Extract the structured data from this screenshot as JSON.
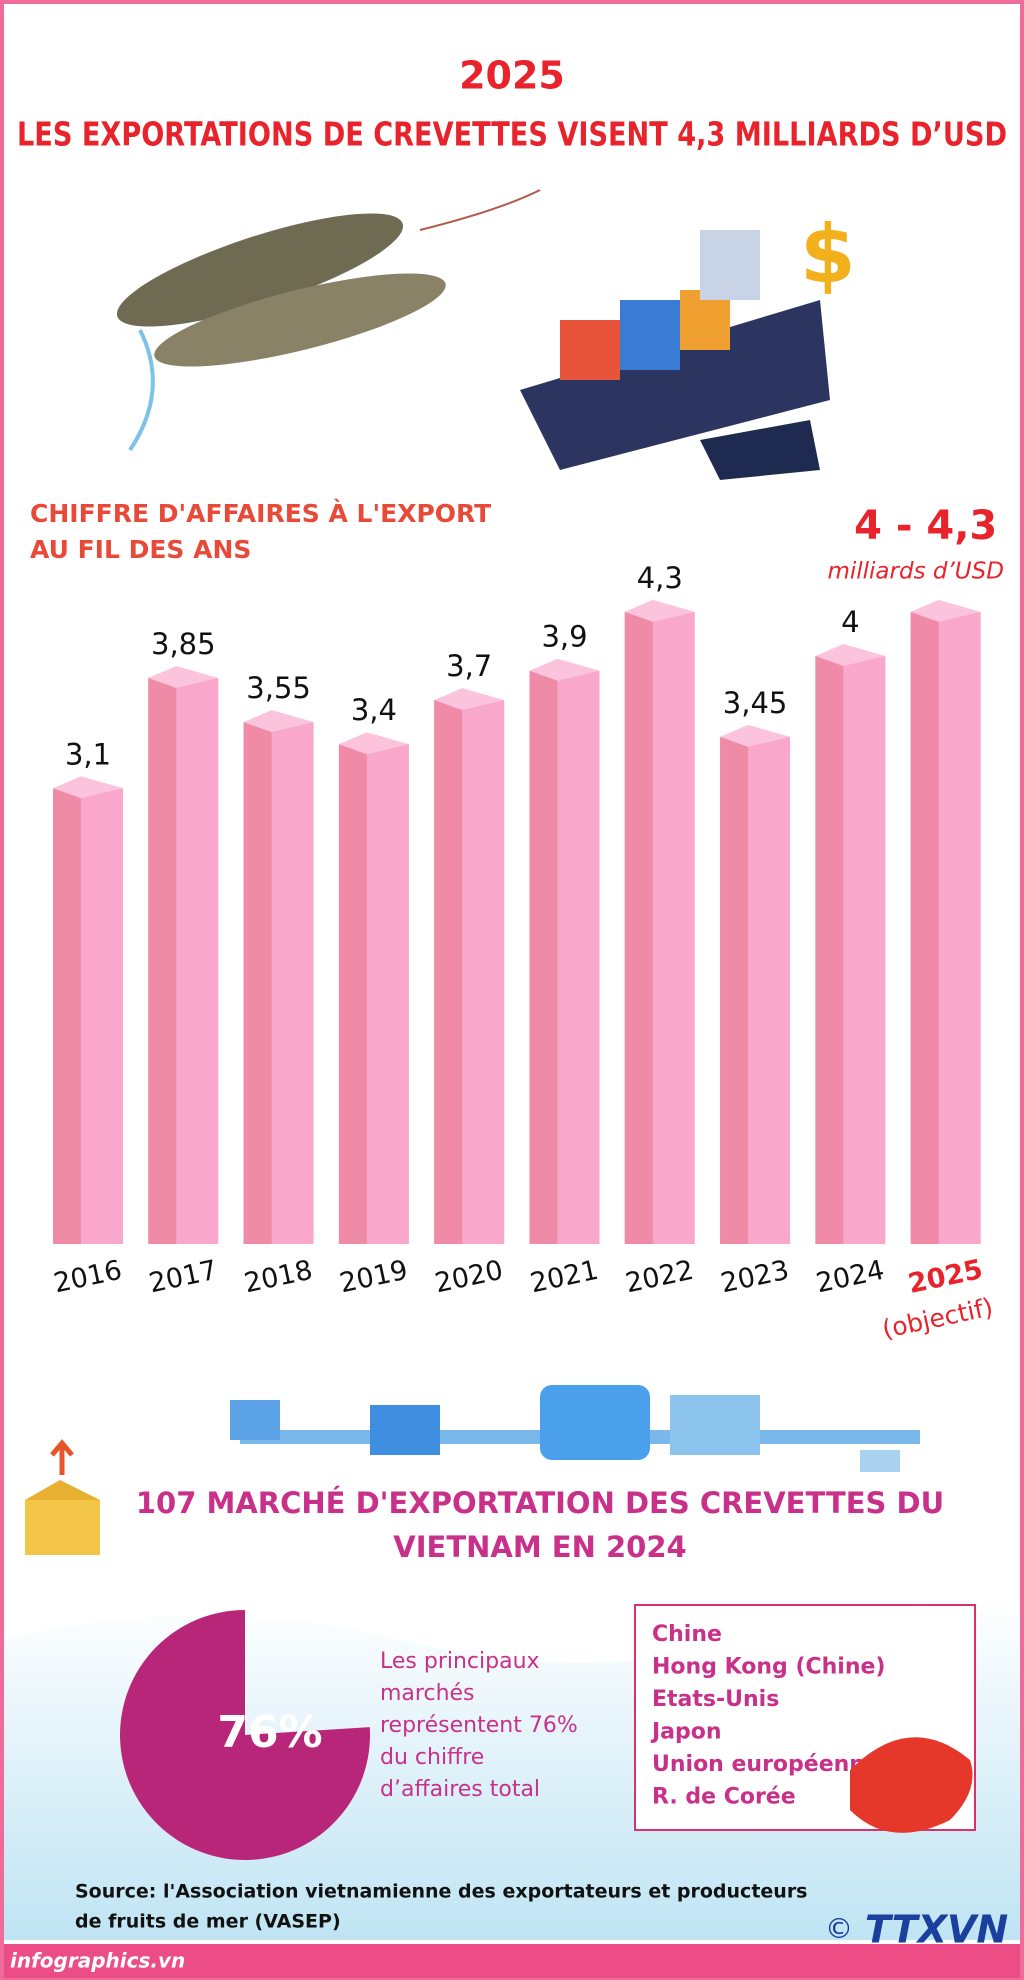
{
  "header": {
    "year": "2025",
    "title": "LES EXPORTATIONS DE CREVETTES VISENT 4,3 MILLIARDS D’USD"
  },
  "chart_data": {
    "type": "bar",
    "title": [
      "CHIFFRE D'AFFAIRES À L'EXPORT",
      "AU FIL DES ANS"
    ],
    "categories": [
      "2016",
      "2017",
      "2018",
      "2019",
      "2020",
      "2021",
      "2022",
      "2023",
      "2024",
      "2025"
    ],
    "values": [
      3.1,
      3.85,
      3.55,
      3.4,
      3.7,
      3.9,
      4.3,
      3.45,
      4,
      null
    ],
    "value_labels": [
      "3,1",
      "3,85",
      "3,55",
      "3,4",
      "3,7",
      "3,9",
      "4,3",
      "3,45",
      "4",
      null
    ],
    "target": {
      "note": "(objectif)",
      "label": "4 - 4,3",
      "low": 4,
      "high": 4.3,
      "unit": "milliards d’USD"
    },
    "color": "#f9a8cb",
    "ylim": [
      0,
      5
    ]
  },
  "markets": {
    "title": [
      "107 MARCHÉ D'EXPORTATION DES CREVETTES DU",
      "VIETNAM EN 2024"
    ],
    "share": 76,
    "share_label": "76%",
    "description": [
      "Les principaux",
      "marchés",
      "représentent 76%",
      "du chiffre",
      "d’affaires total"
    ],
    "list": [
      "Chine",
      "Hong Kong (Chine)",
      "Etats-Unis",
      "Japon",
      "Union européenne",
      "R. de Corée"
    ]
  },
  "source": [
    "Source: l'Association vietnamienne des exportateurs et producteurs",
    "de fruits de mer (VASEP)"
  ],
  "footer": {
    "site": "infographics.vn",
    "agency": "TTXVN",
    "copyright": "©"
  }
}
